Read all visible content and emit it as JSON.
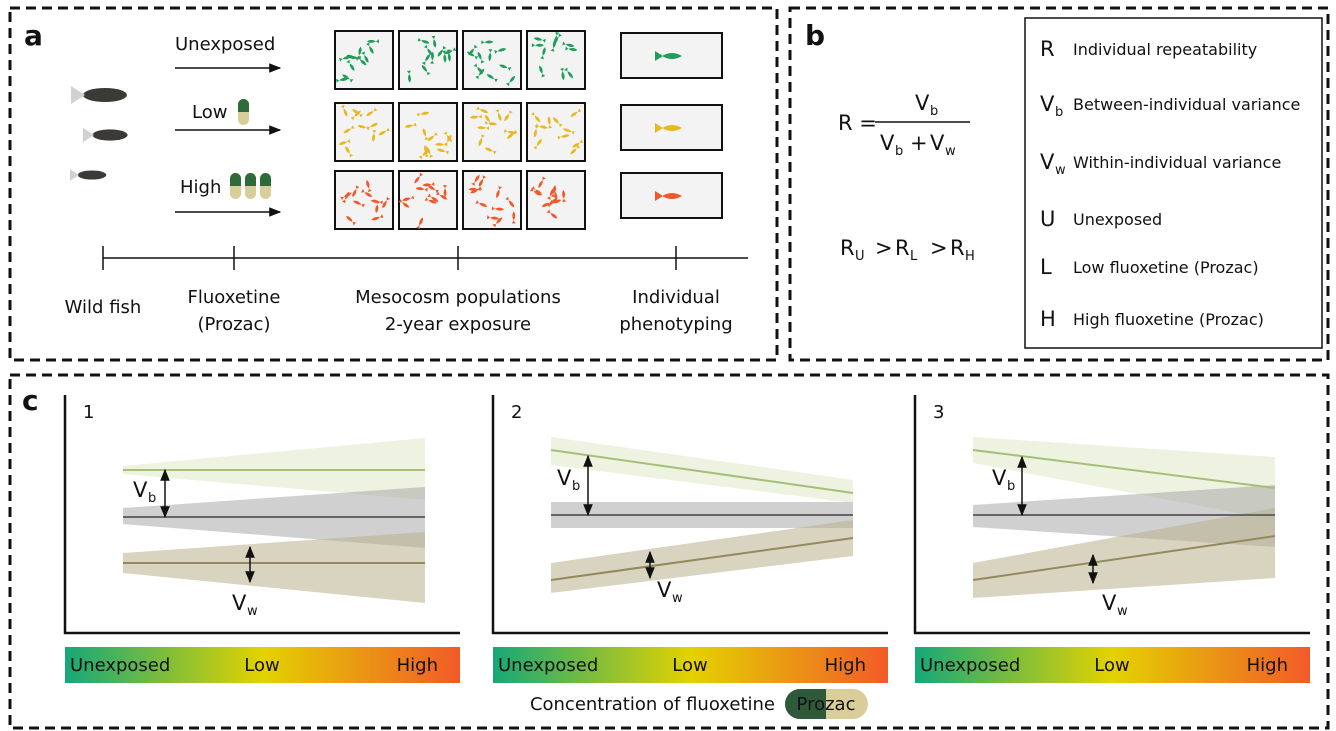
{
  "panel_a": {
    "label": "a",
    "treatments": [
      "Unexposed",
      "Low",
      "High"
    ],
    "timeline": [
      [
        "Wild fish"
      ],
      [
        "Fluoxetine",
        "(Prozac)"
      ],
      [
        "Mesocosm populations",
        "2-year exposure"
      ],
      [
        "Individual",
        "phenotyping"
      ]
    ]
  },
  "panel_b": {
    "label": "b",
    "equation": {
      "lhs": "R =",
      "numerator": {
        "symbol": "V",
        "sub": "b"
      },
      "denominator": [
        {
          "symbol": "V",
          "sub": "b"
        },
        "+",
        {
          "symbol": "V",
          "sub": "w"
        }
      ]
    },
    "inequality": [
      {
        "symbol": "R",
        "sub": "U"
      },
      ">",
      {
        "symbol": "R",
        "sub": "L"
      },
      ">",
      {
        "symbol": "R",
        "sub": "H"
      }
    ],
    "legend": [
      {
        "symbol": "R",
        "text": "Individual repeatability"
      },
      {
        "symbol": "V",
        "sub": "b",
        "text": "Between-individual variance"
      },
      {
        "symbol": "V",
        "sub": "w",
        "text": "Within-individual variance"
      },
      {
        "symbol": "U",
        "text": "Unexposed"
      },
      {
        "symbol": "L",
        "text": "Low fluoxetine (Prozac)"
      },
      {
        "symbol": "H",
        "text": "High fluoxetine (Prozac)"
      }
    ]
  },
  "panel_c": {
    "label": "c",
    "plots": [
      {
        "label": "1",
        "vb": {
          "symbol": "V",
          "sub": "b"
        },
        "vw": {
          "symbol": "V",
          "sub": "w"
        }
      },
      {
        "label": "2",
        "vb": {
          "symbol": "V",
          "sub": "b"
        },
        "vw": {
          "symbol": "V",
          "sub": "w"
        }
      },
      {
        "label": "3",
        "vb": {
          "symbol": "V",
          "sub": "b"
        },
        "vw": {
          "symbol": "V",
          "sub": "w"
        }
      }
    ],
    "scale": [
      "Unexposed",
      "Low",
      "High"
    ],
    "caption": "Concentration of fluoxetine",
    "pill": "Prozac"
  }
}
